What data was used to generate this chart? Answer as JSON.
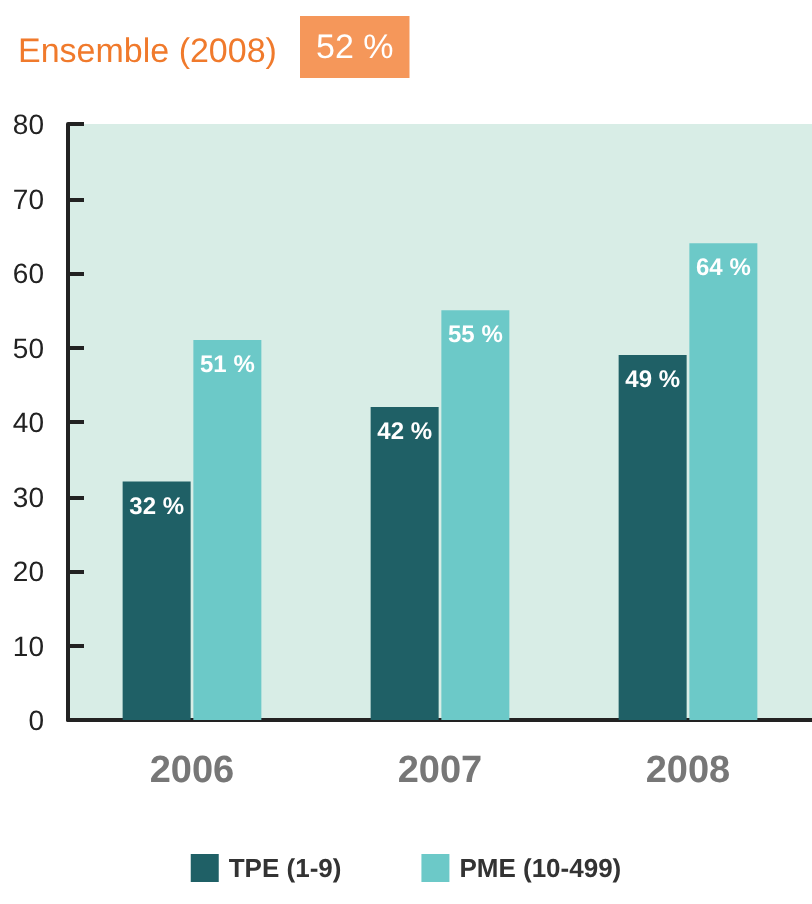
{
  "chart_data": {
    "type": "bar",
    "title": "Ensemble (2008)",
    "annotations": [
      "52 %"
    ],
    "categories": [
      "2006",
      "2007",
      "2008"
    ],
    "series": [
      {
        "name": "TPE (1-9)",
        "color": "#1f6066",
        "values": [
          32,
          42,
          49
        ],
        "value_labels": [
          "32 %",
          "42 %",
          "49 %"
        ]
      },
      {
        "name": "PME (10-499)",
        "color": "#6cc9c8",
        "values": [
          51,
          55,
          64
        ],
        "value_labels": [
          "51 %",
          "55 %",
          "64 %"
        ]
      }
    ],
    "ylim": [
      0,
      80
    ],
    "yticks": [
      0,
      10,
      20,
      30,
      40,
      50,
      60,
      70,
      80
    ],
    "grid": false,
    "legend": "bottom"
  }
}
